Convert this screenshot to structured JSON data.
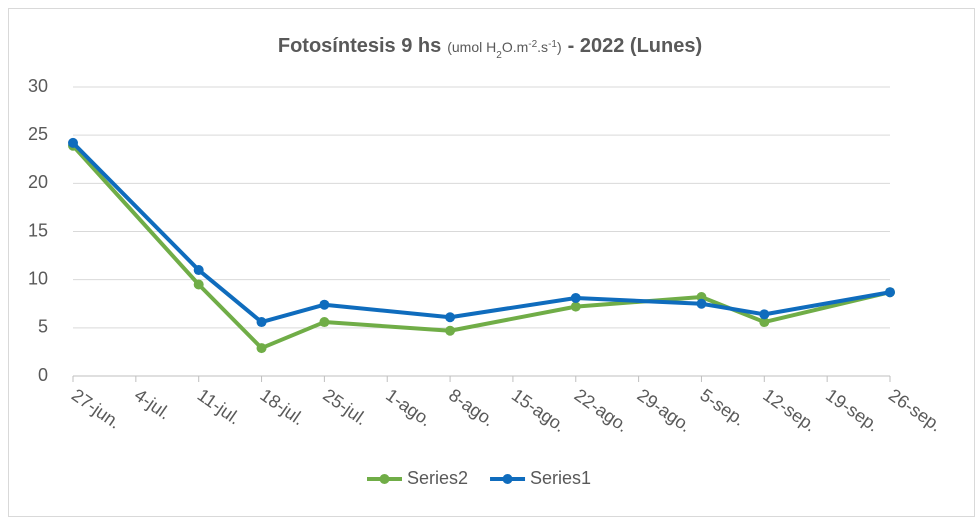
{
  "chart_data": {
    "type": "line",
    "title": [
      "Fotosíntesis 9 hs",
      "(umol H",
      "2",
      "O.m",
      "-2",
      ".s",
      "-1",
      ")",
      "- 2022 (Lunes)"
    ],
    "xticks": [
      "27-jun.",
      "4-jul.",
      "11-jul.",
      "18-jul.",
      "25-jul.",
      "1-ago.",
      "8-ago.",
      "15-ago.",
      "22-ago.",
      "29-ago.",
      "5-sep.",
      "12-sep.",
      "19-sep.",
      "26-sep."
    ],
    "x": [
      "27-jun.",
      "11-jul.",
      "18-jul.",
      "25-jul.",
      "8-ago.",
      "22-ago.",
      "5-sep.",
      "12-sep.",
      "26-sep."
    ],
    "series": [
      {
        "name": "Series2",
        "color": "#70ad47",
        "values": [
          23.9,
          9.5,
          2.9,
          5.6,
          4.7,
          7.2,
          8.2,
          5.6,
          8.7
        ]
      },
      {
        "name": "Series1",
        "color": "#0f6cbd",
        "values": [
          24.2,
          11.0,
          5.6,
          7.4,
          6.1,
          8.1,
          7.5,
          6.4,
          8.7
        ]
      }
    ],
    "ylim": [
      0,
      30
    ],
    "yticks": [
      0,
      5,
      10,
      15,
      20,
      25,
      30
    ],
    "grid": true,
    "legend": "bottom"
  }
}
